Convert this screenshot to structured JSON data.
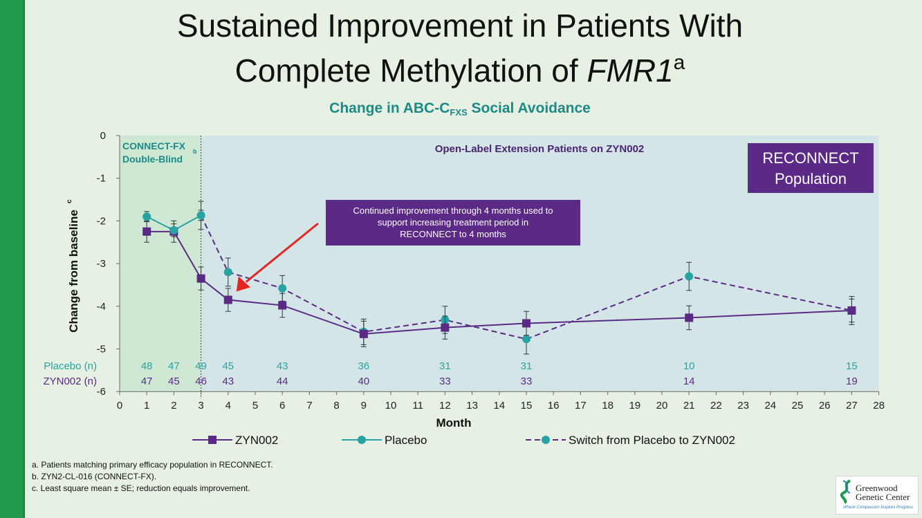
{
  "slide": {
    "title_line1": "Sustained Improvement in Patients With",
    "title_line2_text": "Complete Methylation of ",
    "title_line2_italic": "FMR1",
    "title_line2_sup": "a",
    "accent_color": "#1f9a4c"
  },
  "chart_title": {
    "text": "Change in ABC-C",
    "sub": "FXS",
    "text_after": " Social Avoidance",
    "color": "#1c8a87"
  },
  "chart_data": {
    "type": "line",
    "title": "Change in ABC-CFXS Social Avoidance",
    "xlabel": "Month",
    "ylabel": "Change from baseline",
    "ylabel_sup": "c",
    "xlim": [
      0,
      28
    ],
    "ylim": [
      -6,
      0
    ],
    "x_ticks": [
      0,
      1,
      2,
      3,
      4,
      5,
      6,
      7,
      8,
      9,
      10,
      11,
      12,
      13,
      14,
      15,
      16,
      17,
      18,
      19,
      20,
      21,
      22,
      23,
      24,
      25,
      26,
      27,
      28
    ],
    "y_ticks": [
      0,
      -1,
      -2,
      -3,
      -4,
      -5,
      -6
    ],
    "grid": false,
    "legend_position": "bottom",
    "regions": [
      {
        "label_line1": "CONNECT-FX",
        "label_sup": "b",
        "label_line2": "Double-Blind",
        "x_from": 0,
        "x_to": 3,
        "color": "#cfe8d4"
      },
      {
        "label": "Open-Label Extension Patients on ZYN002",
        "x_from": 3,
        "x_to": 28,
        "color": "#d4e5e8"
      }
    ],
    "series": [
      {
        "name": "ZYN002",
        "color": "#5b2a86",
        "marker": "square",
        "dash": false,
        "points": [
          {
            "x": 1,
            "y": -2.25,
            "err": 0.25
          },
          {
            "x": 2,
            "y": -2.25,
            "err": 0.25
          },
          {
            "x": 3,
            "y": -3.35,
            "err": 0.27
          },
          {
            "x": 4,
            "y": -3.85,
            "err": 0.27
          },
          {
            "x": 6,
            "y": -3.98,
            "err": 0.28
          },
          {
            "x": 9,
            "y": -4.65,
            "err": 0.3
          },
          {
            "x": 12,
            "y": -4.5,
            "err": 0.27
          },
          {
            "x": 15,
            "y": -4.4,
            "err": 0.28
          },
          {
            "x": 21,
            "y": -4.27,
            "err": 0.28
          },
          {
            "x": 27,
            "y": -4.1,
            "err": 0.33
          }
        ]
      },
      {
        "name": "Placebo",
        "color": "#27a3a3",
        "marker": "circle",
        "dash": false,
        "points": [
          {
            "x": 1,
            "y": -1.9,
            "err": 0.12
          },
          {
            "x": 2,
            "y": -2.22,
            "err": 0.15
          },
          {
            "x": 3,
            "y": -1.87,
            "err": 0.12
          }
        ]
      },
      {
        "name": "Switch from Placebo to ZYN002",
        "color": "#5b2a86",
        "marker_color": "#27a3a3",
        "marker": "circle",
        "dash": true,
        "points": [
          {
            "x": 3,
            "y": -1.87,
            "err": 0.33
          },
          {
            "x": 4,
            "y": -3.2,
            "err": 0.33
          },
          {
            "x": 6,
            "y": -3.58,
            "err": 0.3
          },
          {
            "x": 9,
            "y": -4.6,
            "err": 0.3
          },
          {
            "x": 12,
            "y": -4.32,
            "err": 0.32
          },
          {
            "x": 15,
            "y": -4.77,
            "err": 0.35
          },
          {
            "x": 21,
            "y": -3.3,
            "err": 0.33
          },
          {
            "x": 27,
            "y": -4.1,
            "err": 0.27
          }
        ]
      }
    ],
    "n_table": [
      {
        "label": "Placebo (n)",
        "color": "#27a3a3",
        "values": [
          {
            "x": 1,
            "n": "48"
          },
          {
            "x": 2,
            "n": "47"
          },
          {
            "x": 3,
            "n": "49"
          },
          {
            "x": 4,
            "n": "45"
          },
          {
            "x": 6,
            "n": "43"
          },
          {
            "x": 9,
            "n": "36"
          },
          {
            "x": 12,
            "n": "31"
          },
          {
            "x": 15,
            "n": "31"
          },
          {
            "x": 21,
            "n": "10"
          },
          {
            "x": 27,
            "n": "15"
          }
        ]
      },
      {
        "label": "ZYN002 (n)",
        "color": "#5b2a86",
        "values": [
          {
            "x": 1,
            "n": "47"
          },
          {
            "x": 2,
            "n": "45"
          },
          {
            "x": 3,
            "n": "46"
          },
          {
            "x": 4,
            "n": "43"
          },
          {
            "x": 6,
            "n": "44"
          },
          {
            "x": 9,
            "n": "40"
          },
          {
            "x": 12,
            "n": "33"
          },
          {
            "x": 15,
            "n": "33"
          },
          {
            "x": 21,
            "n": "14"
          },
          {
            "x": 27,
            "n": "19"
          }
        ]
      }
    ],
    "callout": {
      "text_lines": [
        "Continued improvement through 4 months used to",
        "support increasing treatment period in",
        "RECONNECT to 4 months"
      ],
      "arrow_color": "#e52521",
      "arrow_target": {
        "x": 4,
        "y": -3.85
      },
      "box_color": "#5b2a86"
    },
    "badge": {
      "text_lines": [
        "RECONNECT",
        "Population"
      ],
      "box_color": "#5b2a86"
    }
  },
  "footnotes": {
    "a": "a. Patients matching primary efficacy population in RECONNECT.",
    "b": "b. ZYN2-CL-016 (CONNECT-FX).",
    "c": "c. Least square mean ± SE; reduction equals improvement."
  },
  "logo": {
    "line1": "Greenwood",
    "line2": "Genetic Center",
    "tagline": "Where Compassion Inspires Progress"
  }
}
